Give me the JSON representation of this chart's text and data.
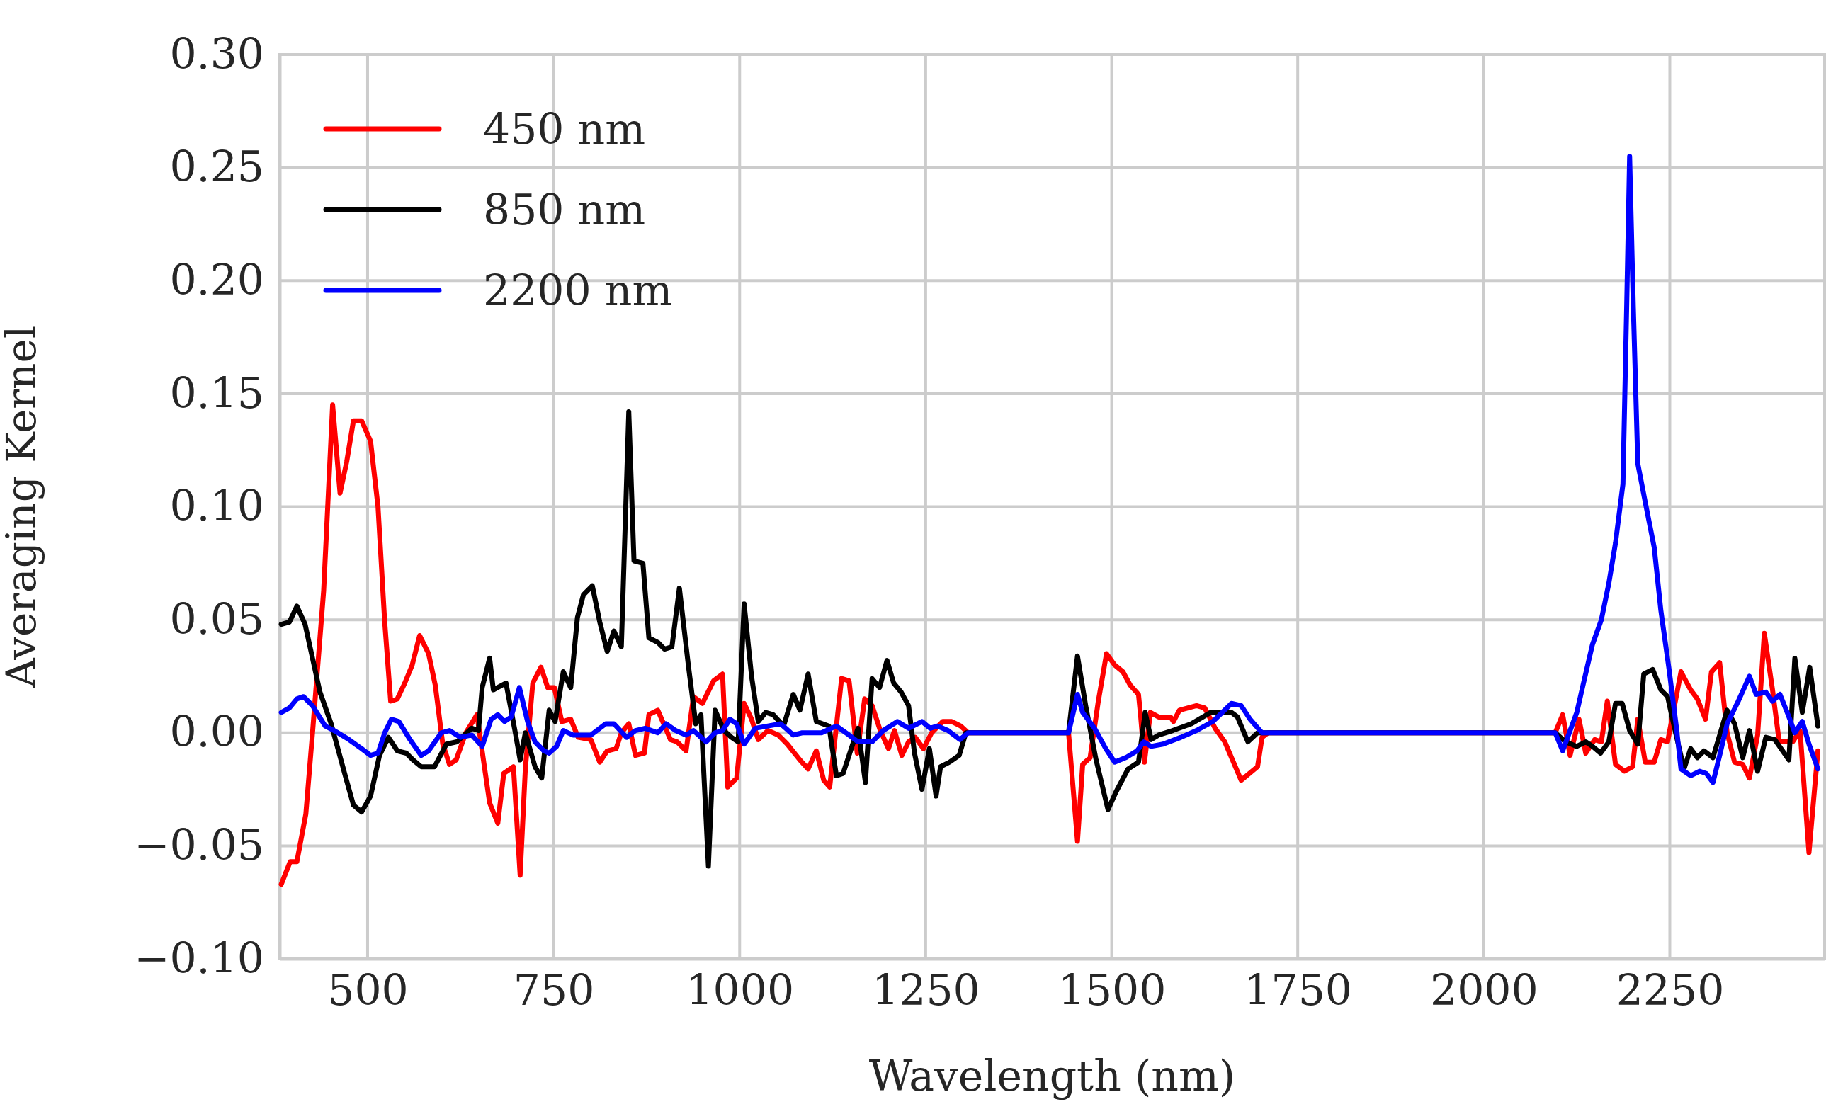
{
  "chart_data": {
    "type": "line",
    "xlabel": "Wavelength (nm)",
    "ylabel": "Averaging Kernel",
    "xlim": [
      382,
      2458
    ],
    "ylim": [
      -0.1,
      0.3
    ],
    "xticks": [
      500,
      750,
      1000,
      1250,
      1500,
      1750,
      2000,
      2250
    ],
    "yticks": [
      {
        "value": -0.1,
        "label": "−0.10"
      },
      {
        "value": -0.05,
        "label": "−0.05"
      },
      {
        "value": 0,
        "label": "0.00"
      },
      {
        "value": 0.05,
        "label": "0.05"
      },
      {
        "value": 0.1,
        "label": "0.10"
      },
      {
        "value": 0.15,
        "label": "0.15"
      },
      {
        "value": 0.2,
        "label": "0.20"
      },
      {
        "value": 0.25,
        "label": "0.25"
      },
      {
        "value": 0.3,
        "label": "0.30"
      }
    ],
    "grid": true,
    "legend": "top left",
    "line_style": "solid",
    "marker": "none",
    "series": [
      {
        "name": "450 nm",
        "color": "#ff0000",
        "x": [
          384,
          396,
          405,
          417,
          426,
          441,
          453,
          463,
          472,
          481,
          492,
          504,
          514,
          523,
          531,
          540,
          550,
          560,
          570,
          582,
          591,
          601,
          610,
          619,
          632,
          647,
          657,
          664,
          675,
          683,
          696,
          705,
          712,
          722,
          733,
          742,
          751,
          761,
          773,
          783,
          800,
          812,
          822,
          834,
          841,
          851,
          860,
          872,
          878,
          890,
          907,
          916,
          928,
          938,
          950,
          965,
          977,
          984,
          996,
          1006,
          1016,
          1025,
          1038,
          1052,
          1064,
          1081,
          1092,
          1103,
          1113,
          1121,
          1137,
          1147,
          1158,
          1168,
          1178,
          1189,
          1200,
          1208,
          1218,
          1227,
          1236,
          1247,
          1258,
          1273,
          1285,
          1297,
          1307,
          1442,
          1454,
          1461,
          1471,
          1482,
          1493,
          1504,
          1515,
          1525,
          1536,
          1539,
          1544,
          1552,
          1563,
          1579,
          1583,
          1591,
          1614,
          1625,
          1639,
          1652,
          1674,
          1696,
          1702,
          1710,
          2096,
          2106,
          2116,
          2128,
          2137,
          2149,
          2158,
          2166,
          2177,
          2189,
          2200,
          2207,
          2217,
          2229,
          2238,
          2247,
          2265,
          2278,
          2287,
          2298,
          2306,
          2317,
          2327,
          2337,
          2348,
          2357,
          2368,
          2377,
          2388,
          2397,
          2415,
          2425,
          2437,
          2449
        ],
        "values": [
          -0.067,
          -0.057,
          -0.057,
          -0.036,
          0,
          0.063,
          0.145,
          0.106,
          0.12,
          0.138,
          0.138,
          0.129,
          0.1,
          0.049,
          0.014,
          0.015,
          0.022,
          0.03,
          0.043,
          0.035,
          0.021,
          -0.005,
          -0.014,
          -0.012,
          0,
          0.008,
          -0.015,
          -0.031,
          -0.04,
          -0.018,
          -0.015,
          -0.063,
          -0.016,
          0.022,
          0.029,
          0.02,
          0.02,
          0.005,
          0.006,
          -0.002,
          -0.003,
          -0.013,
          -0.008,
          -0.007,
          0,
          0.004,
          -0.01,
          -0.009,
          0.008,
          0.01,
          -0.003,
          -0.004,
          -0.008,
          0.016,
          0.013,
          0.023,
          0.026,
          -0.024,
          -0.02,
          0.013,
          0.006,
          -0.003,
          0.001,
          -0.001,
          -0.005,
          -0.012,
          -0.016,
          -0.008,
          -0.021,
          -0.024,
          0.024,
          0.023,
          -0.009,
          0.015,
          0.012,
          0.001,
          -0.007,
          0.001,
          -0.01,
          -0.004,
          -0.002,
          -0.007,
          0,
          0.005,
          0.005,
          0.003,
          0,
          0,
          -0.048,
          -0.014,
          -0.011,
          0.014,
          0.035,
          0.03,
          0.027,
          0.021,
          0.017,
          0.007,
          -0.013,
          0.009,
          0.007,
          0.007,
          0.005,
          0.01,
          0.012,
          0.011,
          0.002,
          -0.004,
          -0.021,
          -0.015,
          -0.002,
          0,
          0,
          0.008,
          -0.01,
          0.006,
          -0.009,
          -0.003,
          -0.004,
          0.014,
          -0.014,
          -0.017,
          -0.015,
          0.006,
          -0.013,
          -0.013,
          -0.003,
          -0.004,
          0.027,
          0.019,
          0.015,
          0.006,
          0.027,
          0.031,
          0,
          -0.013,
          -0.014,
          -0.02,
          -0.001,
          0.044,
          0.019,
          -0.004,
          -0.004,
          0.001,
          -0.053,
          -0.008
        ]
      },
      {
        "name": "850 nm",
        "color": "#000000",
        "x": [
          384,
          395,
          405,
          416,
          426,
          436,
          451,
          470,
          481,
          492,
          504,
          516,
          528,
          540,
          552,
          561,
          572,
          590,
          606,
          620,
          640,
          649,
          654,
          664,
          669,
          686,
          698,
          705,
          712,
          725,
          734,
          744,
          752,
          763,
          773,
          782,
          790,
          802,
          812,
          822,
          831,
          841,
          851,
          858,
          870,
          878,
          890,
          899,
          909,
          919,
          931,
          941,
          948,
          958,
          967,
          979,
          989,
          998,
          1006,
          1016,
          1025,
          1035,
          1045,
          1059,
          1072,
          1081,
          1092,
          1103,
          1120,
          1130,
          1139,
          1159,
          1169,
          1178,
          1188,
          1198,
          1207,
          1217,
          1227,
          1235,
          1245,
          1255,
          1264,
          1270,
          1282,
          1295,
          1304,
          1442,
          1454,
          1465,
          1479,
          1495,
          1506,
          1522,
          1536,
          1545,
          1553,
          1563,
          1582,
          1607,
          1633,
          1661,
          1669,
          1683,
          1696,
          2096,
          2110,
          2125,
          2137,
          2146,
          2157,
          2168,
          2177,
          2186,
          2196,
          2207,
          2215,
          2227,
          2238,
          2247,
          2255,
          2269,
          2278,
          2287,
          2296,
          2308,
          2317,
          2327,
          2337,
          2348,
          2357,
          2368,
          2379,
          2391,
          2410,
          2418,
          2428,
          2438,
          2449
        ],
        "values": [
          0.048,
          0.049,
          0.056,
          0.048,
          0.033,
          0.018,
          0.004,
          -0.019,
          -0.032,
          -0.035,
          -0.028,
          -0.01,
          -0.002,
          -0.008,
          -0.009,
          -0.012,
          -0.015,
          -0.015,
          -0.005,
          -0.004,
          0.002,
          0.001,
          0.02,
          0.033,
          0.019,
          0.022,
          0.001,
          -0.012,
          0,
          -0.015,
          -0.02,
          0.01,
          0.005,
          0.027,
          0.02,
          0.051,
          0.061,
          0.065,
          0.049,
          0.036,
          0.045,
          0.038,
          0.142,
          0.076,
          0.075,
          0.042,
          0.04,
          0.037,
          0.038,
          0.064,
          0.03,
          0.004,
          0.008,
          -0.059,
          0.01,
          0.001,
          -0.002,
          -0.004,
          0.057,
          0.025,
          0.005,
          0.009,
          0.008,
          0.003,
          0.017,
          0.01,
          0.026,
          0.005,
          0.003,
          -0.019,
          -0.018,
          0.002,
          -0.022,
          0.024,
          0.02,
          0.032,
          0.022,
          0.018,
          0.012,
          -0.009,
          -0.025,
          -0.007,
          -0.028,
          -0.015,
          -0.013,
          -0.01,
          0,
          0,
          0.034,
          0.012,
          -0.012,
          -0.034,
          -0.026,
          -0.016,
          -0.013,
          0.009,
          -0.003,
          -0.001,
          0.001,
          0.004,
          0.009,
          0.009,
          0.007,
          -0.004,
          0,
          0,
          -0.004,
          -0.006,
          -0.004,
          -0.006,
          -0.009,
          -0.004,
          0.013,
          0.013,
          0.001,
          -0.005,
          0.026,
          0.028,
          0.019,
          0.016,
          0.004,
          -0.016,
          -0.007,
          -0.011,
          -0.008,
          -0.011,
          -0.001,
          0.01,
          0.004,
          -0.011,
          0.001,
          -0.017,
          -0.002,
          -0.003,
          -0.012,
          0.033,
          0.009,
          0.029,
          0.003
        ]
      },
      {
        "name": "2200 nm",
        "color": "#0000ff",
        "x": [
          384,
          395,
          405,
          414,
          426,
          443,
          455,
          475,
          492,
          504,
          514,
          523,
          532,
          542,
          557,
          572,
          582,
          599,
          610,
          625,
          640,
          654,
          666,
          675,
          684,
          693,
          704,
          715,
          725,
          737,
          744,
          754,
          763,
          776,
          800,
          820,
          831,
          848,
          860,
          873,
          890,
          901,
          914,
          928,
          938,
          955,
          967,
          977,
          987,
          996,
          1006,
          1021,
          1038,
          1055,
          1072,
          1084,
          1110,
          1130,
          1147,
          1159,
          1178,
          1193,
          1212,
          1227,
          1245,
          1256,
          1266,
          1280,
          1296,
          1307,
          1442,
          1454,
          1461,
          1477,
          1492,
          1504,
          1519,
          1534,
          1543,
          1553,
          1569,
          1593,
          1614,
          1636,
          1661,
          1674,
          1686,
          1702,
          2096,
          2106,
          2125,
          2134,
          2146,
          2158,
          2168,
          2177,
          2187,
          2192,
          2196,
          2201,
          2207,
          2217,
          2229,
          2238,
          2249,
          2259,
          2265,
          2278,
          2290,
          2299,
          2308,
          2317,
          2327,
          2342,
          2357,
          2366,
          2379,
          2388,
          2398,
          2409,
          2418,
          2428,
          2437,
          2449
        ],
        "values": [
          0.009,
          0.011,
          0.015,
          0.016,
          0.012,
          0.003,
          0.001,
          -0.003,
          -0.007,
          -0.01,
          -0.009,
          0,
          0.006,
          0.005,
          -0.003,
          -0.01,
          -0.008,
          0,
          0.001,
          -0.002,
          -0.001,
          -0.006,
          0.006,
          0.008,
          0.005,
          0.007,
          0.02,
          0.005,
          -0.004,
          -0.008,
          -0.009,
          -0.006,
          0.001,
          -0.001,
          -0.001,
          0.004,
          0.004,
          -0.002,
          0.001,
          0.002,
          0,
          0.004,
          0.001,
          -0.001,
          0.001,
          -0.004,
          0,
          0.001,
          0.006,
          0.004,
          -0.005,
          0.002,
          0.003,
          0.004,
          -0.001,
          0,
          0,
          0.003,
          -0.001,
          -0.004,
          -0.004,
          0.001,
          0.005,
          0.002,
          0.005,
          0.002,
          0.003,
          0.001,
          -0.003,
          0,
          0,
          0.017,
          0.009,
          0.002,
          -0.007,
          -0.013,
          -0.011,
          -0.008,
          -0.004,
          -0.006,
          -0.005,
          -0.002,
          0.001,
          0.005,
          0.013,
          0.012,
          0.006,
          0,
          0,
          -0.008,
          0.009,
          0.022,
          0.039,
          0.05,
          0.066,
          0.084,
          0.11,
          0.188,
          0.255,
          0.188,
          0.119,
          0.102,
          0.082,
          0.054,
          0.028,
          0.002,
          -0.016,
          -0.019,
          -0.017,
          -0.018,
          -0.022,
          -0.01,
          0.004,
          0.014,
          0.025,
          0.017,
          0.018,
          0.014,
          0.017,
          0.008,
          0,
          0.005,
          -0.005,
          -0.016
        ]
      }
    ]
  }
}
